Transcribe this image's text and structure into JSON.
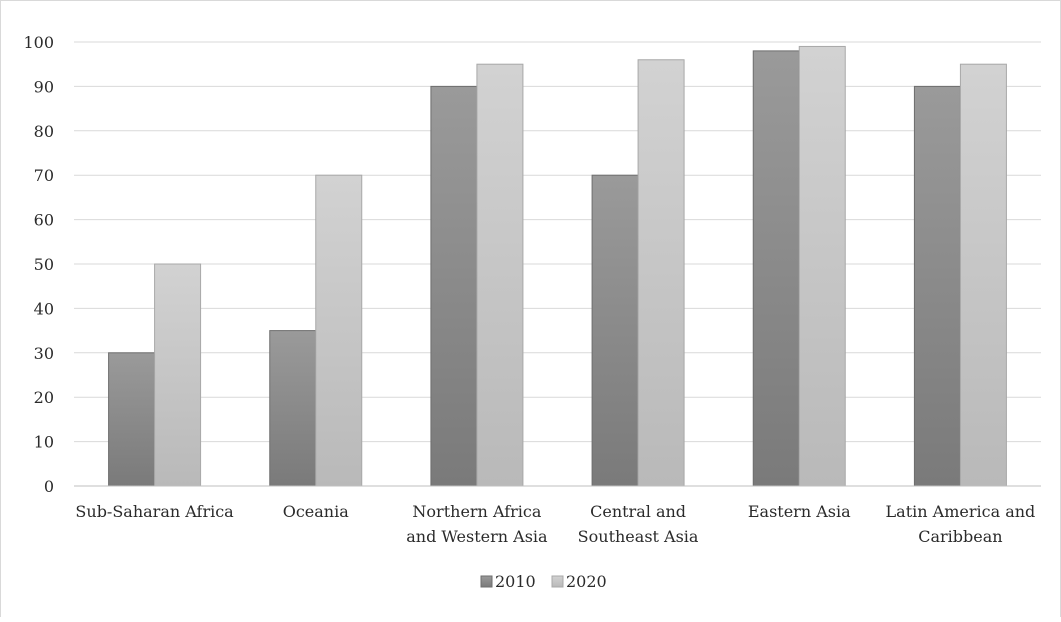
{
  "chart_data": {
    "type": "bar",
    "categories": [
      [
        "Sub-Saharan Africa"
      ],
      [
        "Oceania"
      ],
      [
        "Northern Africa",
        "and Western Asia"
      ],
      [
        "Central and",
        "Southeast Asia"
      ],
      [
        "Eastern Asia"
      ],
      [
        "Latin America and",
        "Caribbean"
      ]
    ],
    "series": [
      {
        "name": "2010",
        "values": [
          30,
          35,
          90,
          70,
          98,
          90
        ],
        "color": "#8c8c8c"
      },
      {
        "name": "2020",
        "values": [
          50,
          70,
          95,
          96,
          99,
          95
        ],
        "color": "#c8c8c8"
      }
    ],
    "title": "",
    "xlabel": "",
    "ylabel": "",
    "ylim": [
      0,
      100
    ],
    "yticks": [
      "0",
      "10",
      "20",
      "30",
      "40",
      "50",
      "60",
      "70",
      "80",
      "90",
      "100"
    ],
    "grid": true,
    "legend_position": "bottom"
  }
}
